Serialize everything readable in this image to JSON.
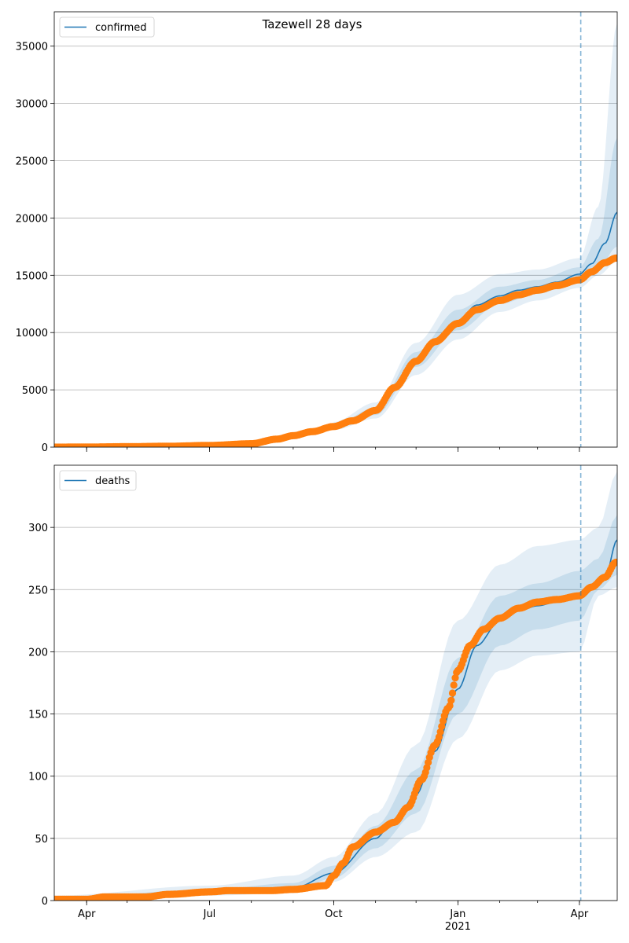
{
  "figure": {
    "title": "Tazewell 28 days"
  },
  "colors": {
    "model": "#1f77b4",
    "observed": "#ff7f0e",
    "band": "#1f77b4",
    "forecast_line": "#1f77b4",
    "grid": "#b0b0b0"
  },
  "x_ticks": [
    {
      "date": "2020-04-01",
      "label": "Apr",
      "sub": ""
    },
    {
      "date": "2020-07-01",
      "label": "Jul",
      "sub": ""
    },
    {
      "date": "2020-10-01",
      "label": "Oct",
      "sub": ""
    },
    {
      "date": "2021-01-01",
      "label": "Jan",
      "sub": "2021"
    },
    {
      "date": "2021-04-01",
      "label": "Apr",
      "sub": ""
    }
  ],
  "chart_data": [
    {
      "type": "line",
      "legend": "confirmed",
      "legend_position": "top-left",
      "grid": "horizontal",
      "x_range": [
        "2020-03-08",
        "2021-04-29"
      ],
      "ylim": [
        0,
        38000
      ],
      "yticks": [
        0,
        5000,
        10000,
        15000,
        20000,
        25000,
        30000,
        35000
      ],
      "forecast_start": "2021-04-02",
      "observed": {
        "points": [
          [
            "2020-03-08",
            0
          ],
          [
            "2020-04-01",
            10
          ],
          [
            "2020-05-01",
            40
          ],
          [
            "2020-06-01",
            80
          ],
          [
            "2020-07-01",
            150
          ],
          [
            "2020-08-01",
            300
          ],
          [
            "2020-08-20",
            700
          ],
          [
            "2020-09-01",
            1000
          ],
          [
            "2020-09-15",
            1350
          ],
          [
            "2020-10-01",
            1800
          ],
          [
            "2020-10-15",
            2300
          ],
          [
            "2020-11-01",
            3200
          ],
          [
            "2020-11-15",
            5200
          ],
          [
            "2020-12-01",
            7500
          ],
          [
            "2020-12-15",
            9200
          ],
          [
            "2021-01-01",
            10800
          ],
          [
            "2021-01-15",
            12000
          ],
          [
            "2021-02-01",
            12800
          ],
          [
            "2021-02-15",
            13300
          ],
          [
            "2021-03-01",
            13700
          ],
          [
            "2021-03-15",
            14100
          ],
          [
            "2021-04-01",
            14600
          ],
          [
            "2021-04-10",
            15300
          ],
          [
            "2021-04-20",
            16100
          ],
          [
            "2021-04-28",
            16500
          ]
        ]
      },
      "model": {
        "points": [
          [
            "2020-03-08",
            0
          ],
          [
            "2020-04-01",
            10
          ],
          [
            "2020-05-01",
            40
          ],
          [
            "2020-06-01",
            80
          ],
          [
            "2020-07-01",
            150
          ],
          [
            "2020-08-01",
            300
          ],
          [
            "2020-08-20",
            700
          ],
          [
            "2020-09-01",
            1000
          ],
          [
            "2020-09-15",
            1350
          ],
          [
            "2020-10-01",
            1800
          ],
          [
            "2020-10-15",
            2300
          ],
          [
            "2020-11-01",
            3100
          ],
          [
            "2020-11-15",
            5100
          ],
          [
            "2020-12-01",
            7600
          ],
          [
            "2020-12-15",
            9300
          ],
          [
            "2021-01-01",
            11000
          ],
          [
            "2021-01-15",
            12400
          ],
          [
            "2021-02-01",
            13200
          ],
          [
            "2021-02-15",
            13700
          ],
          [
            "2021-03-01",
            14000
          ],
          [
            "2021-03-15",
            14400
          ],
          [
            "2021-04-01",
            15100
          ],
          [
            "2021-04-10",
            16000
          ],
          [
            "2021-04-20",
            17800
          ],
          [
            "2021-04-29",
            20500
          ]
        ],
        "band_outer_upper": [
          [
            "2020-10-01",
            2200
          ],
          [
            "2020-11-01",
            3900
          ],
          [
            "2020-12-01",
            9100
          ],
          [
            "2021-01-01",
            13300
          ],
          [
            "2021-02-01",
            15100
          ],
          [
            "2021-03-01",
            15500
          ],
          [
            "2021-04-01",
            16500
          ],
          [
            "2021-04-15",
            21000
          ],
          [
            "2021-04-29",
            37000
          ]
        ],
        "band_outer_lower": [
          [
            "2020-10-01",
            1500
          ],
          [
            "2020-11-01",
            2500
          ],
          [
            "2020-12-01",
            6300
          ],
          [
            "2021-01-01",
            9400
          ],
          [
            "2021-02-01",
            11800
          ],
          [
            "2021-03-01",
            12800
          ],
          [
            "2021-04-01",
            13900
          ],
          [
            "2021-04-15",
            15000
          ],
          [
            "2021-04-29",
            16200
          ]
        ],
        "band_inner_upper": [
          [
            "2020-10-01",
            1950
          ],
          [
            "2020-11-01",
            3450
          ],
          [
            "2020-12-01",
            8300
          ],
          [
            "2021-01-01",
            12000
          ],
          [
            "2021-02-01",
            14000
          ],
          [
            "2021-03-01",
            14600
          ],
          [
            "2021-04-01",
            15700
          ],
          [
            "2021-04-15",
            18200
          ],
          [
            "2021-04-29",
            27000
          ]
        ],
        "band_inner_lower": [
          [
            "2020-10-01",
            1650
          ],
          [
            "2020-11-01",
            2800
          ],
          [
            "2020-12-01",
            7000
          ],
          [
            "2021-01-01",
            10200
          ],
          [
            "2021-02-01",
            12500
          ],
          [
            "2021-03-01",
            13400
          ],
          [
            "2021-04-01",
            14500
          ],
          [
            "2021-04-15",
            15600
          ],
          [
            "2021-04-29",
            17500
          ]
        ]
      }
    },
    {
      "type": "line",
      "legend": "deaths",
      "legend_position": "top-left",
      "grid": "horizontal",
      "x_range": [
        "2020-03-08",
        "2021-04-29"
      ],
      "ylim": [
        0,
        350
      ],
      "yticks": [
        0,
        50,
        100,
        150,
        200,
        250,
        300
      ],
      "forecast_start": "2021-04-02",
      "observed": {
        "points": [
          [
            "2020-03-08",
            1
          ],
          [
            "2020-04-01",
            1
          ],
          [
            "2020-04-15",
            3
          ],
          [
            "2020-05-15",
            3
          ],
          [
            "2020-06-01",
            5
          ],
          [
            "2020-07-01",
            7
          ],
          [
            "2020-07-15",
            8
          ],
          [
            "2020-08-15",
            8
          ],
          [
            "2020-09-01",
            9
          ],
          [
            "2020-09-25",
            12
          ],
          [
            "2020-10-01",
            20
          ],
          [
            "2020-10-08",
            30
          ],
          [
            "2020-10-15",
            43
          ],
          [
            "2020-11-01",
            55
          ],
          [
            "2020-11-15",
            63
          ],
          [
            "2020-11-25",
            75
          ],
          [
            "2020-12-05",
            97
          ],
          [
            "2020-12-15",
            125
          ],
          [
            "2020-12-25",
            155
          ],
          [
            "2021-01-01",
            185
          ],
          [
            "2021-01-10",
            205
          ],
          [
            "2021-01-20",
            218
          ],
          [
            "2021-02-01",
            227
          ],
          [
            "2021-02-15",
            235
          ],
          [
            "2021-03-01",
            240
          ],
          [
            "2021-03-15",
            242
          ],
          [
            "2021-04-01",
            245
          ],
          [
            "2021-04-10",
            252
          ],
          [
            "2021-04-20",
            260
          ],
          [
            "2021-04-28",
            272
          ]
        ]
      },
      "model": {
        "points": [
          [
            "2020-03-08",
            1
          ],
          [
            "2020-04-01",
            1
          ],
          [
            "2020-05-01",
            3
          ],
          [
            "2020-06-01",
            5
          ],
          [
            "2020-07-01",
            7
          ],
          [
            "2020-08-01",
            8
          ],
          [
            "2020-09-01",
            10
          ],
          [
            "2020-10-01",
            22
          ],
          [
            "2020-11-01",
            50
          ],
          [
            "2020-11-15",
            65
          ],
          [
            "2020-12-01",
            85
          ],
          [
            "2020-12-15",
            120
          ],
          [
            "2021-01-01",
            170
          ],
          [
            "2021-01-15",
            205
          ],
          [
            "2021-02-01",
            225
          ],
          [
            "2021-02-15",
            233
          ],
          [
            "2021-03-01",
            237
          ],
          [
            "2021-03-15",
            240
          ],
          [
            "2021-04-01",
            245
          ],
          [
            "2021-04-10",
            250
          ],
          [
            "2021-04-20",
            260
          ],
          [
            "2021-04-29",
            290
          ]
        ],
        "band_outer_upper": [
          [
            "2020-03-08",
            4
          ],
          [
            "2020-07-01",
            12
          ],
          [
            "2020-09-01",
            20
          ],
          [
            "2020-10-01",
            35
          ],
          [
            "2020-11-01",
            70
          ],
          [
            "2020-12-01",
            125
          ],
          [
            "2021-01-01",
            225
          ],
          [
            "2021-02-01",
            270
          ],
          [
            "2021-03-01",
            285
          ],
          [
            "2021-04-01",
            290
          ],
          [
            "2021-04-15",
            300
          ],
          [
            "2021-04-29",
            345
          ]
        ],
        "band_outer_lower": [
          [
            "2020-03-08",
            0
          ],
          [
            "2020-07-01",
            4
          ],
          [
            "2020-09-01",
            6
          ],
          [
            "2020-10-01",
            15
          ],
          [
            "2020-11-01",
            35
          ],
          [
            "2020-12-01",
            55
          ],
          [
            "2021-01-01",
            130
          ],
          [
            "2021-02-01",
            185
          ],
          [
            "2021-03-01",
            197
          ],
          [
            "2021-04-01",
            200
          ],
          [
            "2021-04-15",
            245
          ],
          [
            "2021-04-29",
            252
          ]
        ],
        "band_inner_upper": [
          [
            "2020-03-08",
            2
          ],
          [
            "2020-07-01",
            9
          ],
          [
            "2020-09-01",
            14
          ],
          [
            "2020-10-01",
            28
          ],
          [
            "2020-11-01",
            60
          ],
          [
            "2020-12-01",
            105
          ],
          [
            "2021-01-01",
            195
          ],
          [
            "2021-02-01",
            245
          ],
          [
            "2021-03-01",
            255
          ],
          [
            "2021-04-01",
            265
          ],
          [
            "2021-04-15",
            275
          ],
          [
            "2021-04-29",
            310
          ]
        ],
        "band_inner_lower": [
          [
            "2020-03-08",
            0
          ],
          [
            "2020-07-01",
            5
          ],
          [
            "2020-09-01",
            8
          ],
          [
            "2020-10-01",
            18
          ],
          [
            "2020-11-01",
            42
          ],
          [
            "2020-12-01",
            70
          ],
          [
            "2021-01-01",
            150
          ],
          [
            "2021-02-01",
            205
          ],
          [
            "2021-03-01",
            218
          ],
          [
            "2021-04-01",
            225
          ],
          [
            "2021-04-15",
            250
          ],
          [
            "2021-04-29",
            262
          ]
        ]
      }
    }
  ]
}
